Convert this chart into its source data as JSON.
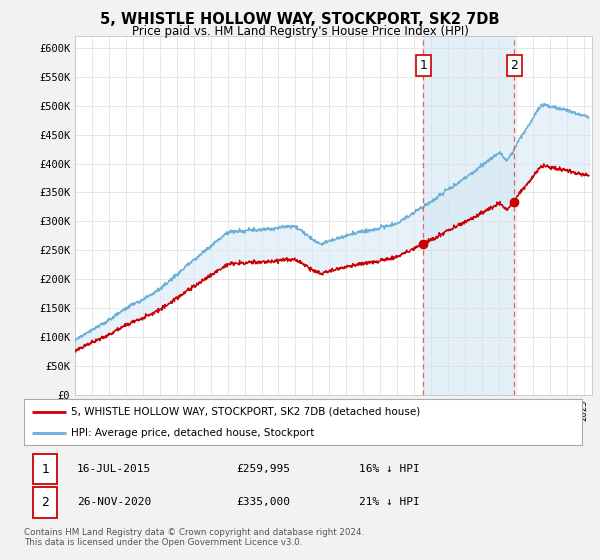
{
  "title": "5, WHISTLE HOLLOW WAY, STOCKPORT, SK2 7DB",
  "subtitle": "Price paid vs. HM Land Registry's House Price Index (HPI)",
  "ylabel_ticks": [
    "£0",
    "£50K",
    "£100K",
    "£150K",
    "£200K",
    "£250K",
    "£300K",
    "£350K",
    "£400K",
    "£450K",
    "£500K",
    "£550K",
    "£600K"
  ],
  "ylim": [
    0,
    620000
  ],
  "xlim_start": 1995.0,
  "xlim_end": 2025.5,
  "hpi_color": "#6BAED6",
  "price_color": "#CC0000",
  "fill_color": "#D6E8F5",
  "marker1_date": 2015.54,
  "marker1_price": 259995,
  "marker2_date": 2020.9,
  "marker2_price": 335000,
  "vline_color": "#EE4444",
  "legend_line1": "5, WHISTLE HOLLOW WAY, STOCKPORT, SK2 7DB (detached house)",
  "legend_line2": "HPI: Average price, detached house, Stockport",
  "annotation1_date": "16-JUL-2015",
  "annotation1_price": "£259,995",
  "annotation1_hpi": "16% ↓ HPI",
  "annotation2_date": "26-NOV-2020",
  "annotation2_price": "£335,000",
  "annotation2_hpi": "21% ↓ HPI",
  "footer": "Contains HM Land Registry data © Crown copyright and database right 2024.\nThis data is licensed under the Open Government Licence v3.0.",
  "background_color": "#F2F2F2",
  "plot_bg_color": "#FFFFFF"
}
